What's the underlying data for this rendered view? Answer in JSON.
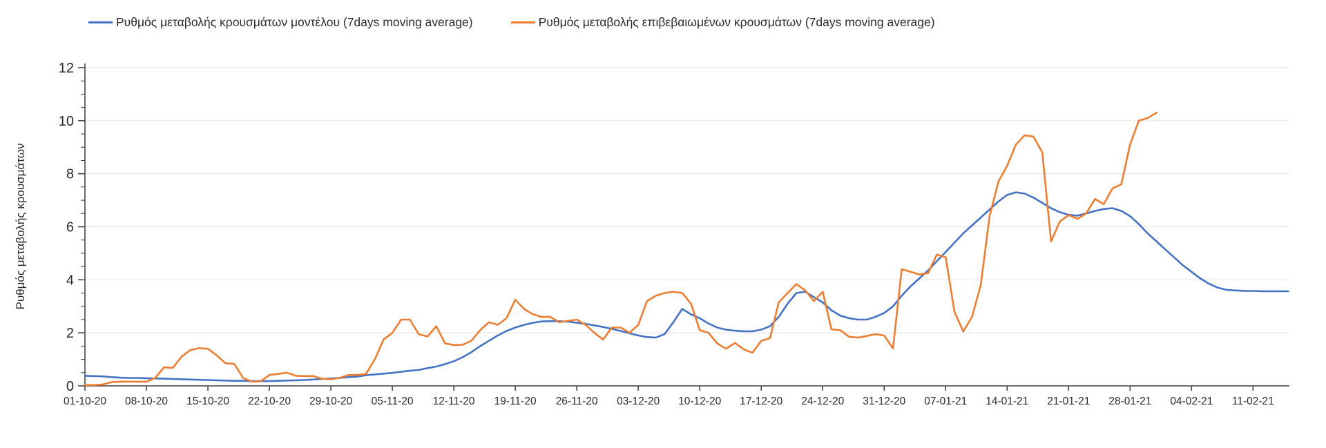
{
  "chart_data": {
    "type": "line",
    "title": "",
    "ylabel": "Ρυθμός μεταβολής κρουσμάτων",
    "xlabel": "",
    "ylim": [
      0,
      12
    ],
    "y_major_ticks": [
      0,
      2,
      4,
      6,
      8,
      10,
      12
    ],
    "y_minor_tick_step": 0.5,
    "grid": "horizontal-only",
    "legend_position": "top",
    "x_start_label": "01-10-20",
    "x_days_per_tick": 7,
    "x_tick_labels": [
      "01-10-20",
      "08-10-20",
      "15-10-20",
      "22-10-20",
      "29-10-20",
      "05-11-20",
      "12-11-20",
      "19-11-20",
      "26-11-20",
      "03-12-20",
      "10-12-20",
      "17-12-20",
      "24-12-20",
      "31-12-20",
      "07-01-21",
      "14-01-21",
      "21-01-21",
      "28-01-21",
      "04-02-21",
      "11-02-21"
    ],
    "series": [
      {
        "name": "Ρυθμός μεταβολής κρουσμάτων μοντέλου (7days moving average)",
        "color": "#4472C4",
        "values": [
          0.38,
          0.37,
          0.36,
          0.33,
          0.31,
          0.3,
          0.3,
          0.29,
          0.28,
          0.27,
          0.26,
          0.25,
          0.24,
          0.23,
          0.22,
          0.21,
          0.2,
          0.19,
          0.19,
          0.18,
          0.18,
          0.18,
          0.19,
          0.2,
          0.21,
          0.22,
          0.24,
          0.26,
          0.28,
          0.3,
          0.33,
          0.35,
          0.4,
          0.43,
          0.46,
          0.49,
          0.53,
          0.57,
          0.6,
          0.67,
          0.73,
          0.82,
          0.93,
          1.08,
          1.27,
          1.5,
          1.7,
          1.9,
          2.07,
          2.2,
          2.3,
          2.38,
          2.43,
          2.44,
          2.44,
          2.42,
          2.38,
          2.34,
          2.28,
          2.22,
          2.15,
          2.07,
          1.98,
          1.9,
          1.84,
          1.82,
          1.95,
          2.4,
          2.9,
          2.7,
          2.55,
          2.35,
          2.2,
          2.12,
          2.08,
          2.06,
          2.06,
          2.12,
          2.25,
          2.6,
          3.1,
          3.5,
          3.55,
          3.35,
          3.15,
          2.85,
          2.65,
          2.55,
          2.5,
          2.5,
          2.6,
          2.75,
          3.0,
          3.4,
          3.75,
          4.05,
          4.35,
          4.7,
          5.05,
          5.4,
          5.75,
          6.05,
          6.35,
          6.65,
          6.95,
          7.2,
          7.3,
          7.25,
          7.1,
          6.9,
          6.7,
          6.55,
          6.45,
          6.42,
          6.5,
          6.6,
          6.67,
          6.7,
          6.6,
          6.4,
          6.1,
          5.75,
          5.45,
          5.15,
          4.85,
          4.55,
          4.3,
          4.05,
          3.85,
          3.7,
          3.62,
          3.6,
          3.58,
          3.58,
          3.57,
          3.57,
          3.57,
          3.57
        ]
      },
      {
        "name": "Ρυθμός μεταβολής επιβεβαιωμένων κρουσμάτων (7days moving average)",
        "color": "#ED7D31",
        "values": [
          0.03,
          0.03,
          0.05,
          0.14,
          0.16,
          0.16,
          0.16,
          0.16,
          0.3,
          0.7,
          0.68,
          1.1,
          1.35,
          1.42,
          1.4,
          1.15,
          0.85,
          0.83,
          0.3,
          0.16,
          0.17,
          0.41,
          0.45,
          0.5,
          0.38,
          0.37,
          0.37,
          0.27,
          0.25,
          0.3,
          0.41,
          0.41,
          0.45,
          1.0,
          1.75,
          2.0,
          2.5,
          2.5,
          1.95,
          1.86,
          2.25,
          1.6,
          1.54,
          1.55,
          1.7,
          2.1,
          2.4,
          2.3,
          2.55,
          3.25,
          2.9,
          2.7,
          2.6,
          2.6,
          2.4,
          2.45,
          2.5,
          2.3,
          2.0,
          1.75,
          2.2,
          2.2,
          2.0,
          2.3,
          3.2,
          3.4,
          3.5,
          3.55,
          3.5,
          3.1,
          2.1,
          2.0,
          1.6,
          1.4,
          1.62,
          1.38,
          1.25,
          1.7,
          1.8,
          3.15,
          3.5,
          3.84,
          3.6,
          3.2,
          3.55,
          2.13,
          2.1,
          1.85,
          1.82,
          1.88,
          1.95,
          1.9,
          1.41,
          4.4,
          4.3,
          4.2,
          4.25,
          4.95,
          4.85,
          2.8,
          2.05,
          2.6,
          3.8,
          6.4,
          7.7,
          8.3,
          9.1,
          9.45,
          9.4,
          8.8,
          5.44,
          6.2,
          6.44,
          6.3,
          6.5,
          7.05,
          6.85,
          7.45,
          7.6,
          9.1,
          10.0,
          10.1,
          10.3
        ]
      }
    ],
    "colors": {
      "axis": "#3c3c3c",
      "grid": "#e2e2e2",
      "tick_text": "#2b2b2b"
    }
  }
}
